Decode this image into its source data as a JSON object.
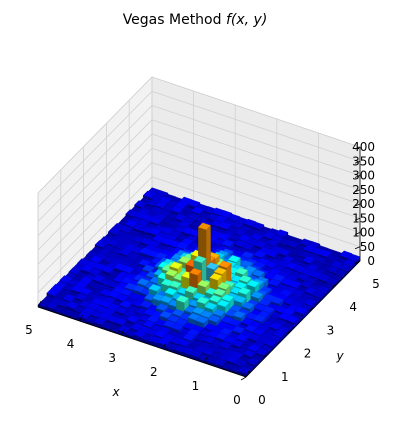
{
  "chart_data": {
    "type": "bar3d",
    "title": "Vegas Method f(x, y)",
    "title_main": "Vegas Method ",
    "title_func": "f(x, y)",
    "xlabel": "x",
    "ylabel": "y",
    "zlabel": "",
    "xlim": [
      0,
      5
    ],
    "ylim": [
      0,
      5
    ],
    "zlim": [
      0,
      400
    ],
    "x_ticks": [
      "0",
      "1",
      "2",
      "3",
      "4",
      "5"
    ],
    "y_ticks": [
      "0",
      "1",
      "2",
      "3",
      "4",
      "5"
    ],
    "z_ticks": [
      "0",
      "50",
      "100",
      "150",
      "200",
      "250",
      "300",
      "350",
      "400"
    ],
    "colormap": "jet",
    "grid": true,
    "bins_per_axis": 26,
    "base_level": 12,
    "bump": {
      "amplitude": 85,
      "width": 0.95,
      "center": [
        2.2,
        2.2
      ]
    },
    "peaks": [
      {
        "x": 2.3,
        "y": 2.2,
        "value": 335,
        "color": "#7a0000"
      },
      {
        "x": 2.2,
        "y": 2.3,
        "value": 240,
        "color": "#ee9000"
      },
      {
        "x": 2.2,
        "y": 2.1,
        "value": 140,
        "color": "#3cf0c8"
      },
      {
        "x": 2.1,
        "y": 2.2,
        "value": 110,
        "color": "#30c8ff"
      }
    ]
  }
}
